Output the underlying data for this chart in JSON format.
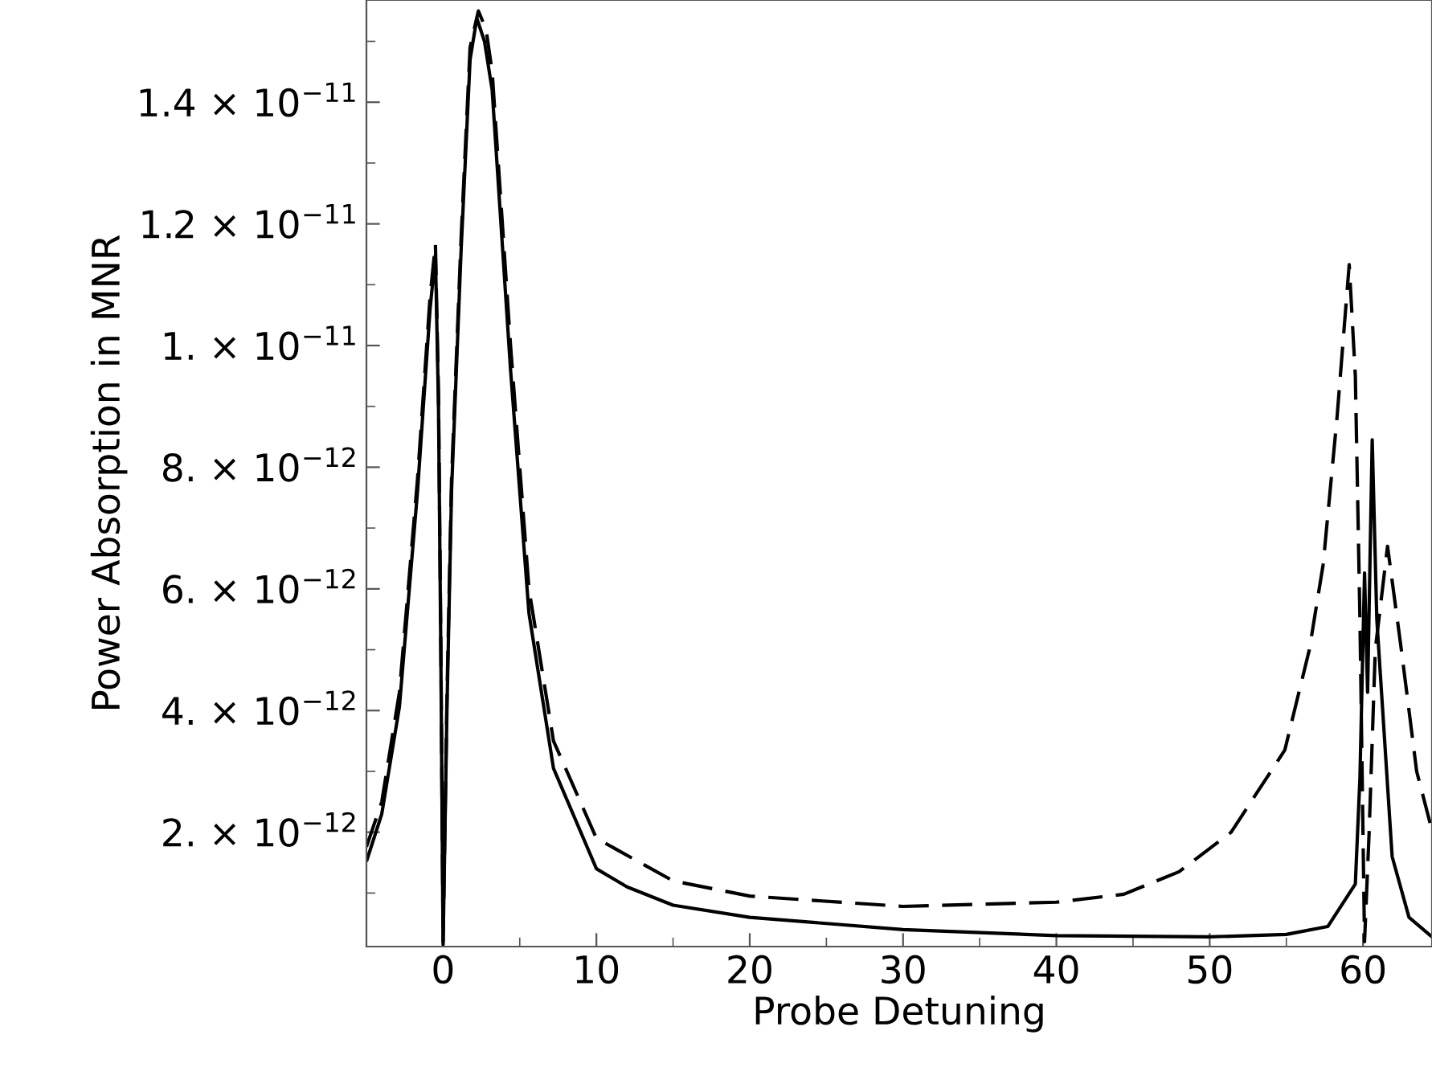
{
  "chart_data": {
    "type": "line",
    "xlabel": "Probe Detuning",
    "ylabel": "Power Absorption in MNR",
    "xlim": [
      -5,
      64.5
    ],
    "ylim": [
      1.2e-13,
      1.568e-11
    ],
    "xticks": [
      0,
      10,
      20,
      30,
      40,
      50,
      60
    ],
    "yticks": [
      {
        "value": 2e-12,
        "label": "2. × 10$^{−12}$"
      },
      {
        "value": 4e-12,
        "label": "4. × 10$^{−12}$"
      },
      {
        "value": 6e-12,
        "label": "6. × 10$^{−12}$"
      },
      {
        "value": 8e-12,
        "label": "8. × 10$^{−12}$"
      },
      {
        "value": 1e-11,
        "label": "1. × 10$^{−11}$"
      },
      {
        "value": 1.2e-11,
        "label": "1.2 × 10$^{−11}$"
      },
      {
        "value": 1.4e-11,
        "label": "1.4 × 10$^{−11}$"
      }
    ],
    "grid": false,
    "marker": "none",
    "series": [
      {
        "color": "#000000",
        "line_style": "solid",
        "x": [
          -5,
          -4,
          -2.85,
          -1.67,
          -0.85,
          -0.5,
          -0.3,
          -0.15,
          0,
          0.25,
          0.55,
          1.18,
          1.76,
          2.2,
          2.7,
          3.2,
          4.4,
          5.6,
          7.2,
          10,
          12,
          15,
          20,
          30,
          40,
          50,
          55,
          57.7,
          59.5,
          59.8,
          60.1,
          60.3,
          60.6,
          60.9,
          61.9,
          63,
          64.5
        ],
        "values": [
          1.52e-12,
          2.3e-12,
          4.06e-12,
          7.6e-12,
          1.06e-11,
          1.149e-11,
          9e-12,
          5e-12,
          1.5e-13,
          4e-12,
          7.6e-12,
          1.16e-11,
          1.47e-11,
          1.538e-11,
          1.5e-11,
          1.42e-11,
          9.6e-12,
          5.6e-12,
          3.05e-12,
          1.4e-12,
          1.1e-12,
          8e-13,
          6e-13,
          4e-13,
          3e-13,
          2.8e-13,
          3.2e-13,
          4.5e-13,
          1.15e-12,
          2.9e-12,
          6.26e-12,
          4.3e-12,
          8.45e-12,
          5.5e-12,
          1.6e-12,
          6e-13,
          2.8e-13
        ]
      },
      {
        "color": "#000000",
        "line_style": "dashed",
        "x": [
          -5,
          -4,
          -2.85,
          -1.67,
          -0.85,
          -0.5,
          -0.3,
          -0.15,
          0,
          0.25,
          0.55,
          1.18,
          1.76,
          2.3,
          2.8,
          3.2,
          4.4,
          5.6,
          7.2,
          10,
          15,
          20,
          30,
          40,
          44.4,
          48,
          51.4,
          54.9,
          56.5,
          57.4,
          58.3,
          59.1,
          59.5,
          59.8,
          60.1,
          60.4,
          60.8,
          61.6,
          62.5,
          63.5,
          64.5
        ],
        "values": [
          1.76e-12,
          2.5e-12,
          4.3e-12,
          7.8e-12,
          1.08e-11,
          1.167e-11,
          9.2e-12,
          5.2e-12,
          2e-13,
          4.2e-12,
          7.8e-12,
          1.18e-11,
          1.49e-11,
          1.55e-11,
          1.52e-11,
          1.45e-11,
          1e-11,
          6e-12,
          3.5e-12,
          1.9e-12,
          1.2e-12,
          9.5e-13,
          7.8e-13,
          8.5e-13,
          9.8e-13,
          1.35e-12,
          2e-12,
          3.35e-12,
          5e-12,
          6.4e-12,
          8.8e-12,
          1.133e-11,
          9.5e-12,
          5.5e-12,
          2e-13,
          2e-12,
          5e-12,
          6.7e-12,
          5e-12,
          3e-12,
          2.03e-12
        ]
      }
    ]
  }
}
